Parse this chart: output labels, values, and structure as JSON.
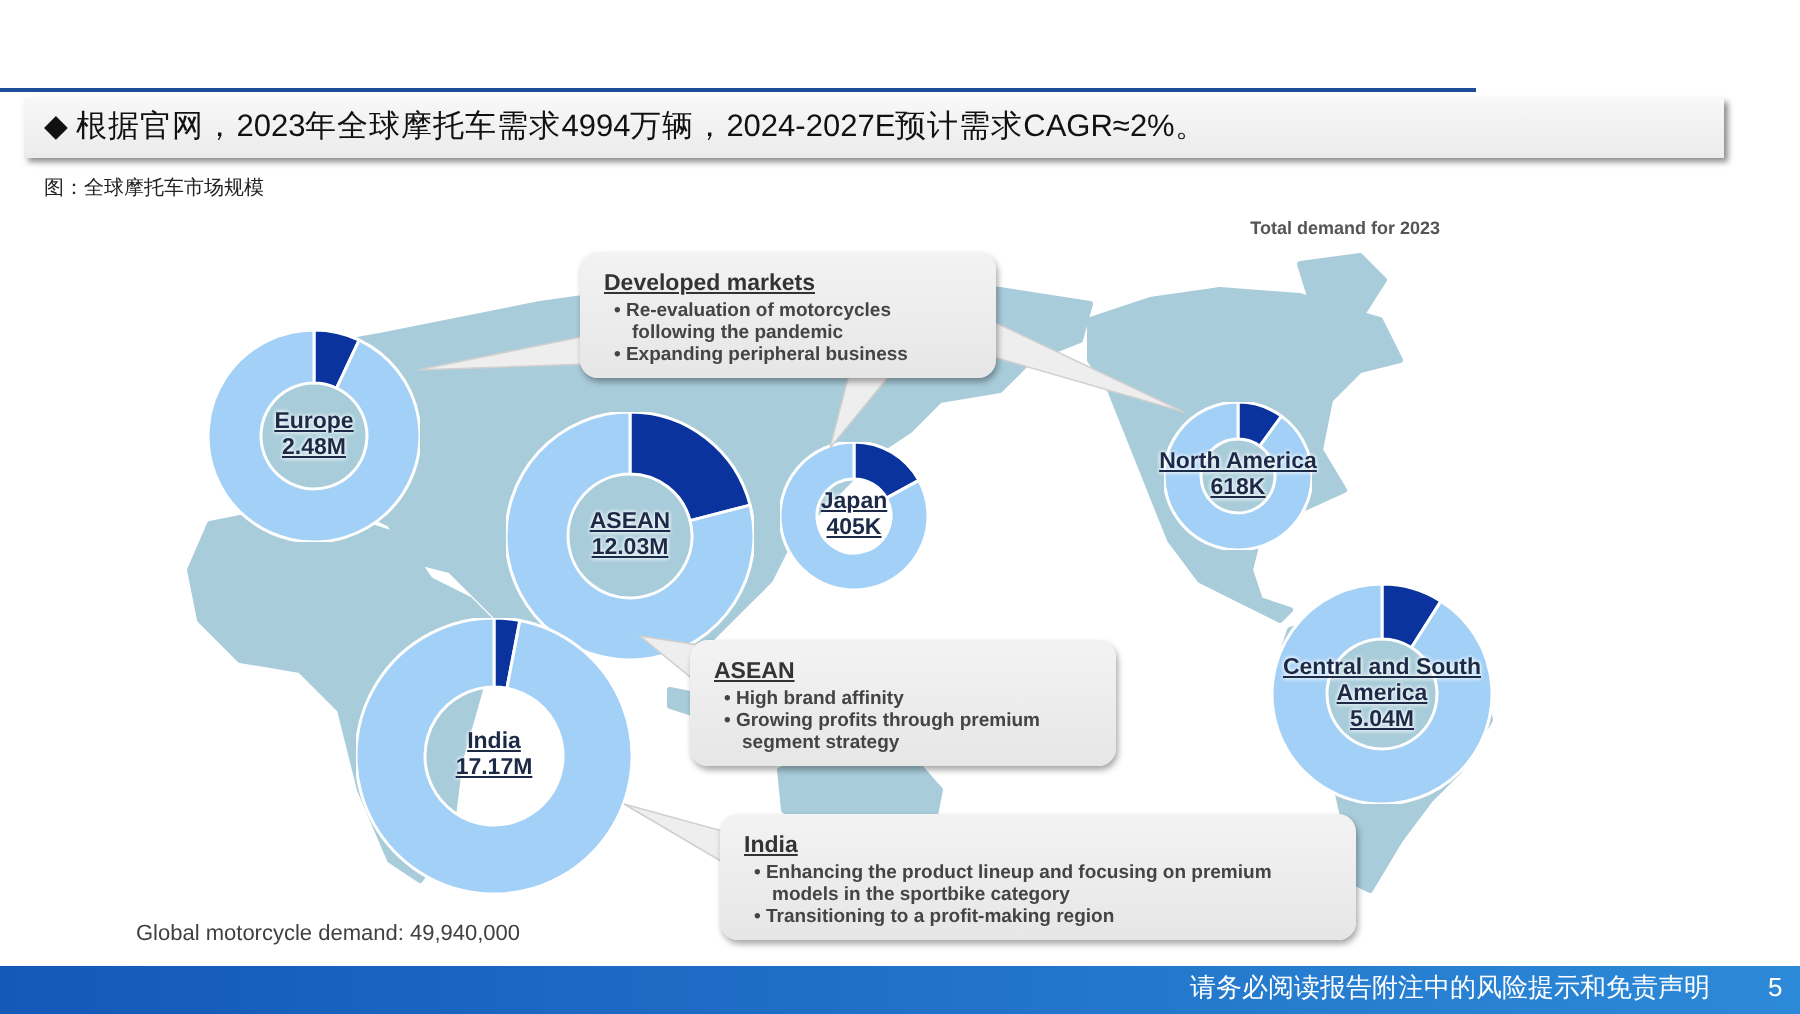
{
  "chart_data": [
    {
      "type": "other",
      "title": "◆ 根据官网，2023年全球摩托车需求4994万辆，2024-2027E预计需求CAGR≈2%。",
      "subtitle": "图：全球摩托车市场规模",
      "annotations": [
        "Total demand for 2023",
        "Global motorcycle demand: 49,940,000",
        "请务必阅读报告附注中的风险提示和免责声明",
        "5"
      ]
    },
    {
      "type": "donut",
      "title": "Europe",
      "annotations": [
        "2.48M"
      ],
      "categories": [
        null,
        null
      ],
      "values": [
        7,
        93
      ],
      "colors": [
        "#0a339e",
        "#a3d0f6"
      ]
    },
    {
      "type": "donut",
      "title": "ASEAN",
      "annotations": [
        "12.03M"
      ],
      "categories": [
        null,
        null
      ],
      "values": [
        21,
        79
      ],
      "colors": [
        "#0a339e",
        "#a3d0f6"
      ]
    },
    {
      "type": "donut",
      "title": "Japan",
      "annotations": [
        "405K"
      ],
      "categories": [
        null,
        null
      ],
      "values": [
        17,
        83
      ],
      "colors": [
        "#0a339e",
        "#a3d0f6"
      ]
    },
    {
      "type": "donut",
      "title": "North America",
      "annotations": [
        "618K"
      ],
      "categories": [
        null,
        null
      ],
      "values": [
        10,
        90
      ],
      "colors": [
        "#0a339e",
        "#a3d0f6"
      ]
    },
    {
      "type": "donut",
      "title": "Central and South America",
      "annotations": [
        "5.04M"
      ],
      "categories": [
        null,
        null
      ],
      "values": [
        9,
        91
      ],
      "colors": [
        "#0a339e",
        "#a3d0f6"
      ]
    },
    {
      "type": "donut",
      "title": "India",
      "annotations": [
        "17.17M"
      ],
      "categories": [
        null,
        null
      ],
      "values": [
        3,
        97
      ],
      "colors": [
        "#0a339e",
        "#a3d0f6"
      ]
    },
    {
      "type": "other",
      "title": "Developed markets",
      "annotations": [
        "• Re-evaluation of motorcycles following the pandemic",
        "• Expanding peripheral business"
      ]
    },
    {
      "type": "other",
      "title": "ASEAN",
      "annotations": [
        "• High brand affinity",
        "• Growing profits through premium segment strategy"
      ]
    },
    {
      "type": "other",
      "title": "India",
      "annotations": [
        "• Enhancing the product lineup and focusing on premium models in the sportbike category",
        "• Transitioning to a profit-making region"
      ]
    }
  ]
}
